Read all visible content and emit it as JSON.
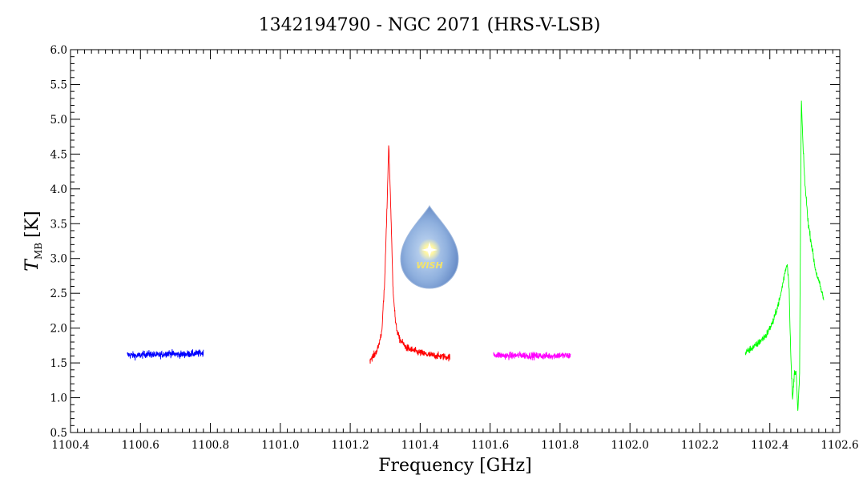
{
  "chart_data": {
    "type": "line",
    "title": "1342194790 - NGC 2071 (HRS-V-LSB)",
    "xlabel": "Frequency [GHz]",
    "ylabel_main": "T",
    "ylabel_sub": "MB",
    "ylabel_unit": "[K]",
    "xlim": [
      1100.4,
      1102.6
    ],
    "ylim": [
      0.5,
      6.0
    ],
    "x_ticks": [
      "1100.4",
      "1100.6",
      "1100.8",
      "1101.0",
      "1101.2",
      "1101.4",
      "1101.6",
      "1101.8",
      "1102.0",
      "1102.2",
      "1102.4",
      "1102.6"
    ],
    "y_ticks": [
      "0.5",
      "1.0",
      "1.5",
      "2.0",
      "2.5",
      "3.0",
      "3.5",
      "4.0",
      "4.5",
      "5.0",
      "5.5",
      "6.0"
    ],
    "grid": false,
    "series": [
      {
        "color": "#0000ff",
        "x": [
          1100.562,
          1100.59,
          1100.62,
          1100.65,
          1100.68,
          1100.71,
          1100.74,
          1100.78
        ],
        "y": [
          1.62,
          1.6,
          1.63,
          1.61,
          1.64,
          1.62,
          1.63,
          1.64
        ]
      },
      {
        "color": "#ff0000",
        "x": [
          1101.256,
          1101.27,
          1101.28,
          1101.29,
          1101.298,
          1101.305,
          1101.31,
          1101.315,
          1101.322,
          1101.33,
          1101.34,
          1101.36,
          1101.39,
          1101.42,
          1101.45,
          1101.485
        ],
        "y": [
          1.55,
          1.62,
          1.72,
          1.95,
          2.6,
          3.7,
          4.65,
          3.9,
          2.6,
          2.05,
          1.85,
          1.72,
          1.66,
          1.62,
          1.6,
          1.58
        ]
      },
      {
        "color": "#ff00ff",
        "x": [
          1101.61,
          1101.65,
          1101.69,
          1101.73,
          1101.77,
          1101.8,
          1101.83
        ],
        "y": [
          1.62,
          1.6,
          1.61,
          1.6,
          1.6,
          1.61,
          1.6
        ]
      },
      {
        "color": "#00ff00",
        "x": [
          1102.33,
          1102.36,
          1102.39,
          1102.41,
          1102.43,
          1102.445,
          1102.45,
          1102.455,
          1102.46,
          1102.465,
          1102.47,
          1102.475,
          1102.48,
          1102.485,
          1102.49,
          1102.495,
          1102.5,
          1102.51,
          1102.53,
          1102.555
        ],
        "y": [
          1.65,
          1.75,
          1.9,
          2.1,
          2.45,
          2.85,
          2.92,
          2.6,
          1.6,
          0.95,
          1.35,
          1.4,
          0.78,
          1.3,
          5.3,
          4.6,
          4.1,
          3.5,
          2.85,
          2.4
        ]
      }
    ],
    "logo": {
      "text": "WISH"
    }
  }
}
